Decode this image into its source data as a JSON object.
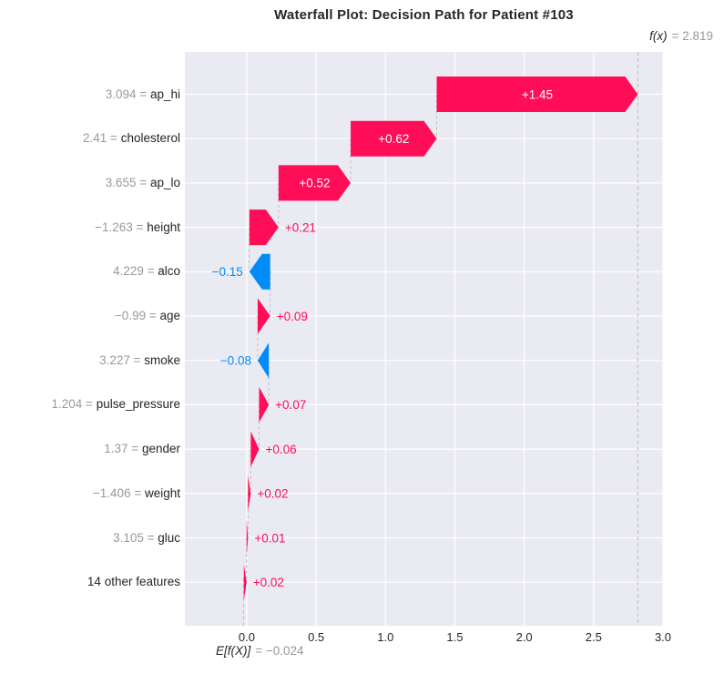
{
  "title": "Waterfall Plot: Decision Path for Patient #103",
  "fx_annotation": {
    "label": "f(x)",
    "value": "= 2.819"
  },
  "base_annotation": {
    "label": "E[f(X)]",
    "value": "= −0.024"
  },
  "colors": {
    "positive": "#ff0d57",
    "negative": "#008bfb",
    "plot_bg": "#eaeaf2",
    "grid": "#ffffff",
    "connector": "#bbbbbb",
    "muted_text": "#999999",
    "dark_text": "#262626",
    "inbar_text": "#ffffff"
  },
  "chart_data": {
    "type": "bar",
    "subtype": "shap-waterfall",
    "title": "Waterfall Plot: Decision Path for Patient #103",
    "fx": 2.819,
    "base_value": -0.024,
    "xlabel": "",
    "ylabel": "",
    "xlim": [
      -0.446,
      3.0
    ],
    "grid": true,
    "xticks": [
      0.0,
      0.5,
      1.0,
      1.5,
      2.0,
      2.5,
      3.0
    ],
    "xtick_labels": [
      "0.0",
      "0.5",
      "1.0",
      "1.5",
      "2.0",
      "2.5",
      "3.0"
    ],
    "rows": [
      {
        "feature": "ap_hi",
        "feature_value": "3.094",
        "shap": 1.45,
        "label": "+1.45"
      },
      {
        "feature": "cholesterol",
        "feature_value": "2.41",
        "shap": 0.62,
        "label": "+0.62"
      },
      {
        "feature": "ap_lo",
        "feature_value": "3.655",
        "shap": 0.52,
        "label": "+0.52"
      },
      {
        "feature": "height",
        "feature_value": "−1.263",
        "shap": 0.21,
        "label": "+0.21"
      },
      {
        "feature": "alco",
        "feature_value": "4.229",
        "shap": -0.15,
        "label": "−0.15"
      },
      {
        "feature": "age",
        "feature_value": "−0.99",
        "shap": 0.09,
        "label": "+0.09"
      },
      {
        "feature": "smoke",
        "feature_value": "3.227",
        "shap": -0.08,
        "label": "−0.08"
      },
      {
        "feature": "pulse_pressure",
        "feature_value": "1.204",
        "shap": 0.07,
        "label": "+0.07"
      },
      {
        "feature": "gender",
        "feature_value": "1.37",
        "shap": 0.06,
        "label": "+0.06"
      },
      {
        "feature": "weight",
        "feature_value": "−1.406",
        "shap": 0.02,
        "label": "+0.02"
      },
      {
        "feature": "gluc",
        "feature_value": "3.105",
        "shap": 0.01,
        "label": "+0.01"
      },
      {
        "feature": "14 other features",
        "feature_value": "",
        "shap": 0.02,
        "label": "+0.02"
      }
    ]
  }
}
